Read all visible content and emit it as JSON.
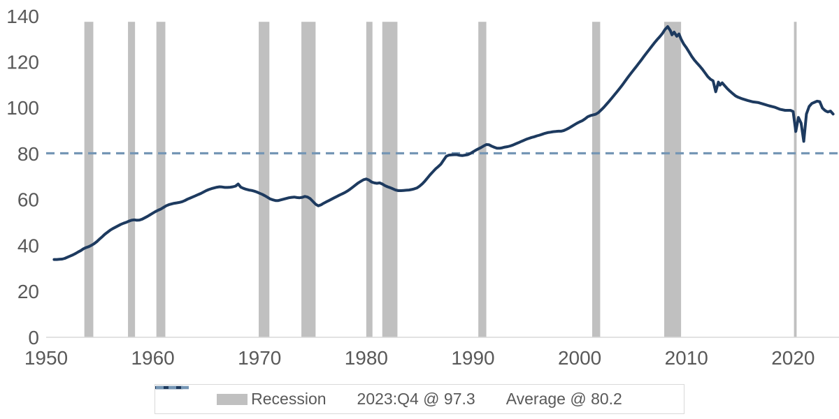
{
  "chart_data": {
    "type": "line",
    "title": "",
    "xlabel": "",
    "ylabel": "",
    "xlim": [
      1950,
      2024.3
    ],
    "ylim": [
      0,
      140
    ],
    "x_ticks": [
      1950,
      1960,
      1970,
      1980,
      1990,
      2000,
      2010,
      2020
    ],
    "y_ticks": [
      0,
      20,
      40,
      60,
      80,
      100,
      120,
      140
    ],
    "grid": false,
    "legend_position": "bottom",
    "average_line": {
      "label": "Average @ 80.2",
      "value": 80.2
    },
    "recession_top": 137.5,
    "recessions": [
      [
        1953.58,
        1954.42
      ],
      [
        1957.67,
        1958.33
      ],
      [
        1960.33,
        1961.17
      ],
      [
        1969.92,
        1970.92
      ],
      [
        1973.92,
        1975.25
      ],
      [
        1980.0,
        1980.58
      ],
      [
        1981.5,
        1982.92
      ],
      [
        1990.5,
        1991.25
      ],
      [
        2001.17,
        2001.92
      ],
      [
        2007.92,
        2009.5
      ],
      [
        2020.08,
        2020.33
      ]
    ],
    "series": [
      {
        "name": "2023:Q4 @ 97.3",
        "last_point_label": "2023:Q4",
        "last_value": 97.3,
        "points": [
          [
            1950.75,
            33.9
          ],
          [
            1951.0,
            33.9
          ],
          [
            1951.25,
            34.0
          ],
          [
            1951.5,
            34.1
          ],
          [
            1951.75,
            34.4
          ],
          [
            1952.0,
            34.9
          ],
          [
            1952.25,
            35.4
          ],
          [
            1952.5,
            35.9
          ],
          [
            1952.75,
            36.5
          ],
          [
            1953.0,
            37.2
          ],
          [
            1953.25,
            37.8
          ],
          [
            1953.5,
            38.6
          ],
          [
            1953.75,
            39.1
          ],
          [
            1954.0,
            39.5
          ],
          [
            1954.25,
            40.1
          ],
          [
            1954.5,
            40.8
          ],
          [
            1954.75,
            41.7
          ],
          [
            1955.0,
            42.8
          ],
          [
            1955.25,
            43.8
          ],
          [
            1955.5,
            44.9
          ],
          [
            1955.75,
            45.8
          ],
          [
            1956.0,
            46.7
          ],
          [
            1956.25,
            47.4
          ],
          [
            1956.5,
            48.0
          ],
          [
            1956.75,
            48.6
          ],
          [
            1957.0,
            49.2
          ],
          [
            1957.25,
            49.7
          ],
          [
            1957.5,
            50.1
          ],
          [
            1957.75,
            50.6
          ],
          [
            1958.0,
            51.0
          ],
          [
            1958.25,
            51.2
          ],
          [
            1958.5,
            51.0
          ],
          [
            1958.75,
            51.1
          ],
          [
            1959.0,
            51.5
          ],
          [
            1959.25,
            52.1
          ],
          [
            1959.5,
            52.7
          ],
          [
            1959.75,
            53.4
          ],
          [
            1960.0,
            54.1
          ],
          [
            1960.25,
            54.8
          ],
          [
            1960.5,
            55.4
          ],
          [
            1960.75,
            55.9
          ],
          [
            1961.0,
            56.6
          ],
          [
            1961.25,
            57.3
          ],
          [
            1961.5,
            57.8
          ],
          [
            1961.75,
            58.1
          ],
          [
            1962.0,
            58.4
          ],
          [
            1962.25,
            58.6
          ],
          [
            1962.5,
            58.8
          ],
          [
            1962.75,
            59.1
          ],
          [
            1963.0,
            59.6
          ],
          [
            1963.25,
            60.2
          ],
          [
            1963.5,
            60.7
          ],
          [
            1963.75,
            61.2
          ],
          [
            1964.0,
            61.7
          ],
          [
            1964.25,
            62.2
          ],
          [
            1964.5,
            62.7
          ],
          [
            1964.75,
            63.3
          ],
          [
            1965.0,
            63.9
          ],
          [
            1965.25,
            64.4
          ],
          [
            1965.5,
            64.8
          ],
          [
            1965.75,
            65.1
          ],
          [
            1966.0,
            65.4
          ],
          [
            1966.25,
            65.6
          ],
          [
            1966.5,
            65.5
          ],
          [
            1966.75,
            65.3
          ],
          [
            1967.0,
            65.3
          ],
          [
            1967.25,
            65.4
          ],
          [
            1967.5,
            65.6
          ],
          [
            1967.75,
            65.9
          ],
          [
            1968.0,
            66.8
          ],
          [
            1968.25,
            65.4
          ],
          [
            1968.5,
            64.9
          ],
          [
            1968.75,
            64.5
          ],
          [
            1969.0,
            64.2
          ],
          [
            1969.25,
            64.0
          ],
          [
            1969.5,
            63.7
          ],
          [
            1969.75,
            63.3
          ],
          [
            1970.0,
            62.8
          ],
          [
            1970.25,
            62.3
          ],
          [
            1970.5,
            61.7
          ],
          [
            1970.75,
            61.0
          ],
          [
            1971.0,
            60.3
          ],
          [
            1971.25,
            59.9
          ],
          [
            1971.5,
            59.6
          ],
          [
            1971.75,
            59.6
          ],
          [
            1972.0,
            59.9
          ],
          [
            1972.25,
            60.2
          ],
          [
            1972.5,
            60.5
          ],
          [
            1972.75,
            60.8
          ],
          [
            1973.0,
            61.0
          ],
          [
            1973.25,
            61.1
          ],
          [
            1973.5,
            60.9
          ],
          [
            1973.75,
            60.8
          ],
          [
            1974.0,
            61.0
          ],
          [
            1974.25,
            61.4
          ],
          [
            1974.5,
            61.1
          ],
          [
            1974.75,
            60.4
          ],
          [
            1975.0,
            59.2
          ],
          [
            1975.25,
            58.0
          ],
          [
            1975.5,
            57.3
          ],
          [
            1975.75,
            57.7
          ],
          [
            1976.0,
            58.4
          ],
          [
            1976.25,
            59.0
          ],
          [
            1976.5,
            59.6
          ],
          [
            1976.75,
            60.2
          ],
          [
            1977.0,
            60.8
          ],
          [
            1977.25,
            61.4
          ],
          [
            1977.5,
            62.0
          ],
          [
            1977.75,
            62.5
          ],
          [
            1978.0,
            63.1
          ],
          [
            1978.25,
            63.8
          ],
          [
            1978.5,
            64.6
          ],
          [
            1978.75,
            65.5
          ],
          [
            1979.0,
            66.4
          ],
          [
            1979.25,
            67.3
          ],
          [
            1979.5,
            68.0
          ],
          [
            1979.75,
            68.7
          ],
          [
            1980.0,
            69.0
          ],
          [
            1980.25,
            68.5
          ],
          [
            1980.5,
            67.7
          ],
          [
            1980.75,
            67.3
          ],
          [
            1981.0,
            67.1
          ],
          [
            1981.25,
            67.3
          ],
          [
            1981.5,
            66.8
          ],
          [
            1981.75,
            66.1
          ],
          [
            1982.0,
            65.6
          ],
          [
            1982.25,
            65.2
          ],
          [
            1982.5,
            64.7
          ],
          [
            1982.75,
            64.2
          ],
          [
            1983.0,
            63.9
          ],
          [
            1983.25,
            63.9
          ],
          [
            1983.5,
            64.0
          ],
          [
            1983.75,
            64.1
          ],
          [
            1984.0,
            64.2
          ],
          [
            1984.25,
            64.4
          ],
          [
            1984.5,
            64.7
          ],
          [
            1984.75,
            65.1
          ],
          [
            1985.0,
            65.9
          ],
          [
            1985.25,
            66.9
          ],
          [
            1985.5,
            68.1
          ],
          [
            1985.75,
            69.5
          ],
          [
            1986.0,
            70.9
          ],
          [
            1986.25,
            72.2
          ],
          [
            1986.5,
            73.4
          ],
          [
            1986.75,
            74.4
          ],
          [
            1987.0,
            75.5
          ],
          [
            1987.25,
            77.2
          ],
          [
            1987.5,
            78.9
          ],
          [
            1987.75,
            79.4
          ],
          [
            1988.0,
            79.5
          ],
          [
            1988.25,
            79.6
          ],
          [
            1988.5,
            79.6
          ],
          [
            1988.75,
            79.3
          ],
          [
            1989.0,
            79.2
          ],
          [
            1989.25,
            79.4
          ],
          [
            1989.5,
            79.6
          ],
          [
            1989.75,
            80.1
          ],
          [
            1990.0,
            80.8
          ],
          [
            1990.25,
            81.5
          ],
          [
            1990.5,
            82.1
          ],
          [
            1990.75,
            82.7
          ],
          [
            1991.0,
            83.4
          ],
          [
            1991.25,
            84.0
          ],
          [
            1991.5,
            83.9
          ],
          [
            1991.75,
            83.3
          ],
          [
            1992.0,
            82.8
          ],
          [
            1992.25,
            82.4
          ],
          [
            1992.5,
            82.4
          ],
          [
            1992.75,
            82.6
          ],
          [
            1993.0,
            82.9
          ],
          [
            1993.25,
            83.1
          ],
          [
            1993.5,
            83.4
          ],
          [
            1993.75,
            83.8
          ],
          [
            1994.0,
            84.3
          ],
          [
            1994.25,
            84.8
          ],
          [
            1994.5,
            85.3
          ],
          [
            1994.75,
            85.8
          ],
          [
            1995.0,
            86.3
          ],
          [
            1995.25,
            86.7
          ],
          [
            1995.5,
            87.1
          ],
          [
            1995.75,
            87.4
          ],
          [
            1996.0,
            87.8
          ],
          [
            1996.25,
            88.1
          ],
          [
            1996.5,
            88.5
          ],
          [
            1996.75,
            88.9
          ],
          [
            1997.0,
            89.2
          ],
          [
            1997.25,
            89.4
          ],
          [
            1997.5,
            89.6
          ],
          [
            1997.75,
            89.7
          ],
          [
            1998.0,
            89.8
          ],
          [
            1998.25,
            89.8
          ],
          [
            1998.5,
            90.1
          ],
          [
            1998.75,
            90.6
          ],
          [
            1999.0,
            91.2
          ],
          [
            1999.25,
            91.9
          ],
          [
            1999.5,
            92.6
          ],
          [
            1999.75,
            93.3
          ],
          [
            2000.0,
            93.9
          ],
          [
            2000.25,
            94.4
          ],
          [
            2000.5,
            95.2
          ],
          [
            2000.75,
            96.1
          ],
          [
            2001.0,
            96.6
          ],
          [
            2001.25,
            96.9
          ],
          [
            2001.5,
            97.2
          ],
          [
            2001.75,
            97.9
          ],
          [
            2002.0,
            99.0
          ],
          [
            2002.25,
            100.2
          ],
          [
            2002.5,
            101.5
          ],
          [
            2002.75,
            102.8
          ],
          [
            2003.0,
            104.2
          ],
          [
            2003.25,
            105.6
          ],
          [
            2003.5,
            107.0
          ],
          [
            2003.75,
            108.5
          ],
          [
            2004.0,
            110.0
          ],
          [
            2004.25,
            111.6
          ],
          [
            2004.5,
            113.2
          ],
          [
            2004.75,
            114.7
          ],
          [
            2005.0,
            116.2
          ],
          [
            2005.25,
            117.7
          ],
          [
            2005.5,
            119.2
          ],
          [
            2005.75,
            120.7
          ],
          [
            2006.0,
            122.3
          ],
          [
            2006.25,
            123.8
          ],
          [
            2006.5,
            125.3
          ],
          [
            2006.75,
            126.8
          ],
          [
            2007.0,
            128.3
          ],
          [
            2007.25,
            129.7
          ],
          [
            2007.5,
            131.0
          ],
          [
            2007.75,
            132.4
          ],
          [
            2008.0,
            134.2
          ],
          [
            2008.25,
            135.4
          ],
          [
            2008.5,
            133.6
          ],
          [
            2008.65,
            131.8
          ],
          [
            2008.85,
            133.0
          ],
          [
            2009.1,
            131.2
          ],
          [
            2009.3,
            132.2
          ],
          [
            2009.5,
            130.0
          ],
          [
            2009.75,
            127.8
          ],
          [
            2010.0,
            126.2
          ],
          [
            2010.25,
            124.3
          ],
          [
            2010.5,
            122.4
          ],
          [
            2010.75,
            120.8
          ],
          [
            2011.0,
            119.5
          ],
          [
            2011.25,
            118.2
          ],
          [
            2011.5,
            116.8
          ],
          [
            2011.75,
            115.2
          ],
          [
            2012.0,
            113.6
          ],
          [
            2012.25,
            112.5
          ],
          [
            2012.5,
            111.8
          ],
          [
            2012.75,
            107.0
          ],
          [
            2013.0,
            111.2
          ],
          [
            2013.15,
            109.9
          ],
          [
            2013.35,
            110.9
          ],
          [
            2013.6,
            109.6
          ],
          [
            2013.85,
            108.3
          ],
          [
            2014.1,
            107.2
          ],
          [
            2014.35,
            106.2
          ],
          [
            2014.6,
            105.2
          ],
          [
            2014.85,
            104.6
          ],
          [
            2015.25,
            103.9
          ],
          [
            2015.75,
            103.2
          ],
          [
            2016.25,
            102.6
          ],
          [
            2016.75,
            102.3
          ],
          [
            2017.25,
            101.6
          ],
          [
            2017.75,
            100.9
          ],
          [
            2018.25,
            100.3
          ],
          [
            2018.75,
            99.4
          ],
          [
            2019.25,
            98.9
          ],
          [
            2019.75,
            98.9
          ],
          [
            2020.0,
            98.4
          ],
          [
            2020.25,
            89.7
          ],
          [
            2020.5,
            95.8
          ],
          [
            2020.75,
            93.3
          ],
          [
            2021.0,
            85.4
          ],
          [
            2021.25,
            97.3
          ],
          [
            2021.5,
            100.6
          ],
          [
            2021.75,
            101.9
          ],
          [
            2022.0,
            102.4
          ],
          [
            2022.25,
            102.9
          ],
          [
            2022.5,
            102.7
          ],
          [
            2022.75,
            99.9
          ],
          [
            2023.0,
            98.8
          ],
          [
            2023.25,
            98.2
          ],
          [
            2023.5,
            98.6
          ],
          [
            2023.75,
            97.3
          ]
        ]
      }
    ],
    "legend": {
      "recession_label": "Recession",
      "series_label": "2023:Q4 @ 97.3",
      "average_label": "Average @ 80.2"
    },
    "colors": {
      "line": "#1d3a5f",
      "average": "#7596b5",
      "recession": "#c0c0c0",
      "axis_text": "#595959",
      "baseline": "#d9d9d9",
      "legend_border": "#d9d9d9"
    }
  }
}
